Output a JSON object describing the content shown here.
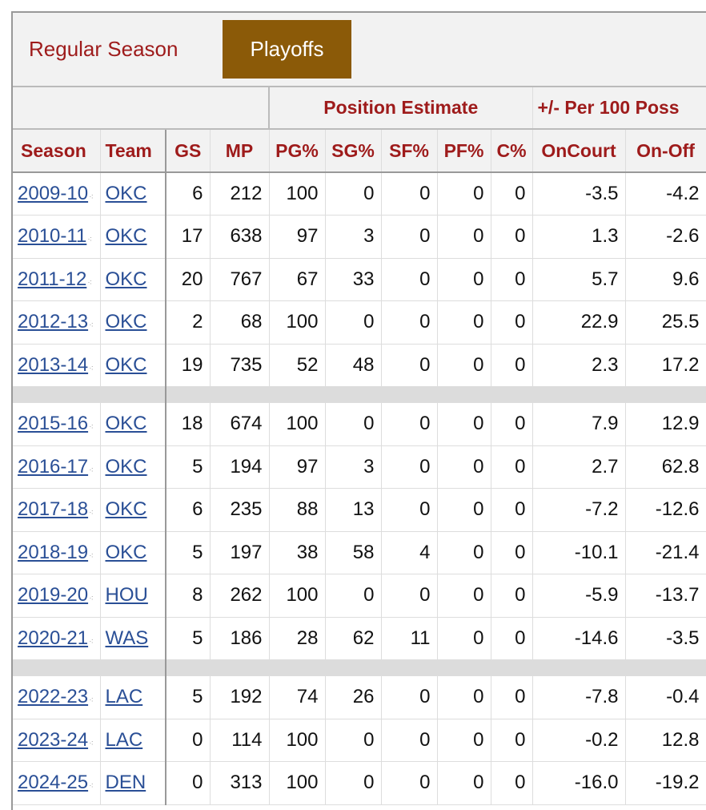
{
  "tabs": {
    "regular": "Regular Season",
    "playoffs": "Playoffs"
  },
  "group_headers": {
    "position_estimate": "Position Estimate",
    "plus_minus": "+/- Per 100 Poss"
  },
  "columns": [
    "Season",
    "Team",
    "GS",
    "MP",
    "PG%",
    "SG%",
    "SF%",
    "PF%",
    "C%",
    "OnCourt",
    "On-Off"
  ],
  "colors": {
    "accent": "#9e1b1b",
    "active_tab": "#8b5a08",
    "link": "#2a4f96",
    "negative": "#a31515",
    "positive": "#1d7a1d"
  },
  "rows": [
    {
      "season": "2009-10",
      "team": "OKC",
      "gs": "6",
      "mp": "212",
      "pg": "100",
      "sg": "0",
      "sf": "0",
      "pf": "0",
      "c": "0",
      "oncourt": "-3.5",
      "onoff": "-4.2"
    },
    {
      "season": "2010-11",
      "team": "OKC",
      "gs": "17",
      "mp": "638",
      "pg": "97",
      "sg": "3",
      "sf": "0",
      "pf": "0",
      "c": "0",
      "oncourt": "1.3",
      "onoff": "-2.6"
    },
    {
      "season": "2011-12",
      "team": "OKC",
      "gs": "20",
      "mp": "767",
      "pg": "67",
      "sg": "33",
      "sf": "0",
      "pf": "0",
      "c": "0",
      "oncourt": "5.7",
      "onoff": "9.6"
    },
    {
      "season": "2012-13",
      "team": "OKC",
      "gs": "2",
      "mp": "68",
      "pg": "100",
      "sg": "0",
      "sf": "0",
      "pf": "0",
      "c": "0",
      "oncourt": "22.9",
      "onoff": "25.5"
    },
    {
      "season": "2013-14",
      "team": "OKC",
      "gs": "19",
      "mp": "735",
      "pg": "52",
      "sg": "48",
      "sf": "0",
      "pf": "0",
      "c": "0",
      "oncourt": "2.3",
      "onoff": "17.2"
    },
    {
      "gap": true
    },
    {
      "season": "2015-16",
      "team": "OKC",
      "gs": "18",
      "mp": "674",
      "pg": "100",
      "sg": "0",
      "sf": "0",
      "pf": "0",
      "c": "0",
      "oncourt": "7.9",
      "onoff": "12.9"
    },
    {
      "season": "2016-17",
      "team": "OKC",
      "gs": "5",
      "mp": "194",
      "pg": "97",
      "sg": "3",
      "sf": "0",
      "pf": "0",
      "c": "0",
      "oncourt": "2.7",
      "onoff": "62.8"
    },
    {
      "season": "2017-18",
      "team": "OKC",
      "gs": "6",
      "mp": "235",
      "pg": "88",
      "sg": "13",
      "sf": "0",
      "pf": "0",
      "c": "0",
      "oncourt": "-7.2",
      "onoff": "-12.6"
    },
    {
      "season": "2018-19",
      "team": "OKC",
      "gs": "5",
      "mp": "197",
      "pg": "38",
      "sg": "58",
      "sf": "4",
      "pf": "0",
      "c": "0",
      "oncourt": "-10.1",
      "onoff": "-21.4"
    },
    {
      "season": "2019-20",
      "team": "HOU",
      "gs": "8",
      "mp": "262",
      "pg": "100",
      "sg": "0",
      "sf": "0",
      "pf": "0",
      "c": "0",
      "oncourt": "-5.9",
      "onoff": "-13.7"
    },
    {
      "season": "2020-21",
      "team": "WAS",
      "gs": "5",
      "mp": "186",
      "pg": "28",
      "sg": "62",
      "sf": "11",
      "pf": "0",
      "c": "0",
      "oncourt": "-14.6",
      "onoff": "-3.5"
    },
    {
      "gap": true
    },
    {
      "season": "2022-23",
      "team": "LAC",
      "gs": "5",
      "mp": "192",
      "pg": "74",
      "sg": "26",
      "sf": "0",
      "pf": "0",
      "c": "0",
      "oncourt": "-7.8",
      "onoff": "-0.4"
    },
    {
      "season": "2023-24",
      "team": "LAC",
      "gs": "0",
      "mp": "114",
      "pg": "100",
      "sg": "0",
      "sf": "0",
      "pf": "0",
      "c": "0",
      "oncourt": "-0.2",
      "onoff": "12.8"
    },
    {
      "season": "2024-25",
      "team": "DEN",
      "gs": "0",
      "mp": "313",
      "pg": "100",
      "sg": "0",
      "sf": "0",
      "pf": "0",
      "c": "0",
      "oncourt": "-16.0",
      "onoff": "-19.2"
    }
  ]
}
